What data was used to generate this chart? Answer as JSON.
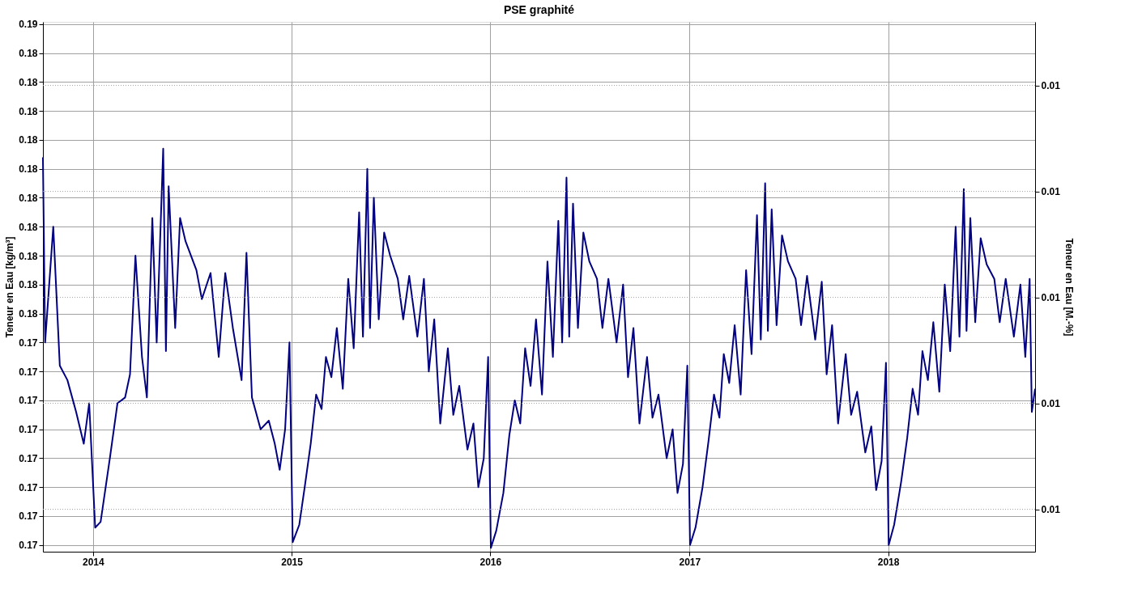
{
  "chart_data": {
    "type": "line",
    "title": "PSE graphité",
    "ylabel": "Teneur en Eau [kg/m³]",
    "y2label": "Teneur en Eau [M.-%]",
    "xlim": [
      "2013-10-01",
      "2018-09-28"
    ],
    "xticks": [
      "2014",
      "2015",
      "2016",
      "2017",
      "2018"
    ],
    "ylim": [
      0.16677,
      0.18508
    ],
    "yticks": [
      {
        "value": 0.167,
        "label": "0.17"
      },
      {
        "value": 0.168,
        "label": "0.17"
      },
      {
        "value": 0.169,
        "label": "0.17"
      },
      {
        "value": 0.17,
        "label": "0.17"
      },
      {
        "value": 0.171,
        "label": "0.17"
      },
      {
        "value": 0.172,
        "label": "0.17"
      },
      {
        "value": 0.173,
        "label": "0.17"
      },
      {
        "value": 0.174,
        "label": "0.17"
      },
      {
        "value": 0.175,
        "label": "0.18"
      },
      {
        "value": 0.176,
        "label": "0.18"
      },
      {
        "value": 0.177,
        "label": "0.18"
      },
      {
        "value": 0.178,
        "label": "0.18"
      },
      {
        "value": 0.179,
        "label": "0.18"
      },
      {
        "value": 0.18,
        "label": "0.18"
      },
      {
        "value": 0.181,
        "label": "0.18"
      },
      {
        "value": 0.182,
        "label": "0.18"
      },
      {
        "value": 0.183,
        "label": "0.18"
      },
      {
        "value": 0.184,
        "label": "0.18"
      },
      {
        "value": 0.185,
        "label": "0.19"
      }
    ],
    "y2lim": [
      0.00904,
      0.01104
    ],
    "y2ticks": [
      {
        "value": 0.0092,
        "label": "0.01"
      },
      {
        "value": 0.0096,
        "label": "0.01"
      },
      {
        "value": 0.01,
        "label": "0.01"
      },
      {
        "value": 0.0104,
        "label": "0.01"
      },
      {
        "value": 0.0108,
        "label": "0.01"
      }
    ],
    "grid": true,
    "line_style": "solid",
    "marker": "none",
    "series": [
      {
        "color": "#000080",
        "x": [
          "2013-10-01",
          "2013-10-05",
          "2013-10-20",
          "2013-11-01",
          "2013-11-15",
          "2013-12-01",
          "2013-12-15",
          "2013-12-25",
          "2014-01-05",
          "2014-01-15",
          "2014-02-01",
          "2014-02-15",
          "2014-03-01",
          "2014-03-10",
          "2014-03-20",
          "2014-04-01",
          "2014-04-10",
          "2014-04-20",
          "2014-04-28",
          "2014-05-10",
          "2014-05-15",
          "2014-05-20",
          "2014-06-01",
          "2014-06-10",
          "2014-06-20",
          "2014-07-10",
          "2014-07-20",
          "2014-08-05",
          "2014-08-20",
          "2014-09-01",
          "2014-09-15",
          "2014-10-01",
          "2014-10-10",
          "2014-10-20",
          "2014-11-05",
          "2014-11-20",
          "2014-12-01",
          "2014-12-10",
          "2014-12-20",
          "2014-12-28",
          "2015-01-03",
          "2015-01-15",
          "2015-01-25",
          "2015-02-05",
          "2015-02-15",
          "2015-02-25",
          "2015-03-05",
          "2015-03-15",
          "2015-03-25",
          "2015-04-05",
          "2015-04-15",
          "2015-04-25",
          "2015-05-05",
          "2015-05-12",
          "2015-05-20",
          "2015-05-25",
          "2015-06-01",
          "2015-06-10",
          "2015-06-20",
          "2015-07-01",
          "2015-07-15",
          "2015-07-25",
          "2015-08-05",
          "2015-08-20",
          "2015-09-01",
          "2015-09-10",
          "2015-09-20",
          "2015-10-01",
          "2015-10-15",
          "2015-10-25",
          "2015-11-05",
          "2015-11-20",
          "2015-12-01",
          "2015-12-10",
          "2015-12-20",
          "2015-12-28",
          "2016-01-02",
          "2016-01-12",
          "2016-01-25",
          "2016-02-05",
          "2016-02-15",
          "2016-02-25",
          "2016-03-05",
          "2016-03-15",
          "2016-03-25",
          "2016-04-05",
          "2016-04-15",
          "2016-04-25",
          "2016-05-05",
          "2016-05-12",
          "2016-05-20",
          "2016-05-25",
          "2016-06-01",
          "2016-06-10",
          "2016-06-20",
          "2016-07-01",
          "2016-07-15",
          "2016-07-25",
          "2016-08-05",
          "2016-08-20",
          "2016-09-01",
          "2016-09-10",
          "2016-09-20",
          "2016-10-01",
          "2016-10-15",
          "2016-10-25",
          "2016-11-05",
          "2016-11-20",
          "2016-12-01",
          "2016-12-10",
          "2016-12-20",
          "2016-12-28",
          "2017-01-02",
          "2017-01-12",
          "2017-01-25",
          "2017-02-05",
          "2017-02-15",
          "2017-02-25",
          "2017-03-05",
          "2017-03-15",
          "2017-03-25",
          "2017-04-05",
          "2017-04-15",
          "2017-04-25",
          "2017-05-05",
          "2017-05-12",
          "2017-05-20",
          "2017-05-25",
          "2017-06-01",
          "2017-06-10",
          "2017-06-20",
          "2017-07-01",
          "2017-07-15",
          "2017-07-25",
          "2017-08-05",
          "2017-08-20",
          "2017-09-01",
          "2017-09-10",
          "2017-09-20",
          "2017-10-01",
          "2017-10-15",
          "2017-10-25",
          "2017-11-05",
          "2017-11-20",
          "2017-12-01",
          "2017-12-10",
          "2017-12-20",
          "2017-12-28",
          "2018-01-02",
          "2018-01-12",
          "2018-01-25",
          "2018-02-05",
          "2018-02-15",
          "2018-02-25",
          "2018-03-05",
          "2018-03-15",
          "2018-03-25",
          "2018-04-05",
          "2018-04-15",
          "2018-04-25",
          "2018-05-05",
          "2018-05-12",
          "2018-05-20",
          "2018-05-25",
          "2018-06-01",
          "2018-06-10",
          "2018-06-20",
          "2018-07-01",
          "2018-07-15",
          "2018-07-25",
          "2018-08-05",
          "2018-08-20",
          "2018-09-01",
          "2018-09-10",
          "2018-09-18",
          "2018-09-22",
          "2018-09-28"
        ],
        "values": [
          0.1804,
          0.174,
          0.178,
          0.1732,
          0.1727,
          0.1716,
          0.1705,
          0.1719,
          0.1676,
          0.1678,
          0.17,
          0.1719,
          0.1721,
          0.1729,
          0.177,
          0.1735,
          0.1721,
          0.1783,
          0.174,
          0.1807,
          0.1737,
          0.1794,
          0.1745,
          0.1783,
          0.1775,
          0.1765,
          0.1755,
          0.1764,
          0.1735,
          0.1764,
          0.1745,
          0.1727,
          0.1771,
          0.1721,
          0.171,
          0.1713,
          0.1705,
          0.1696,
          0.171,
          0.174,
          0.1671,
          0.1677,
          0.169,
          0.1705,
          0.1722,
          0.1717,
          0.1735,
          0.1728,
          0.1745,
          0.1724,
          0.1762,
          0.1738,
          0.1785,
          0.1742,
          0.18,
          0.1745,
          0.179,
          0.1748,
          0.1778,
          0.177,
          0.1762,
          0.1748,
          0.1763,
          0.1742,
          0.1762,
          0.173,
          0.1748,
          0.1712,
          0.1738,
          0.1715,
          0.1725,
          0.1703,
          0.1712,
          0.169,
          0.17,
          0.1735,
          0.1669,
          0.1675,
          0.1688,
          0.1708,
          0.172,
          0.1712,
          0.1738,
          0.1725,
          0.1748,
          0.1722,
          0.1768,
          0.1735,
          0.1782,
          0.174,
          0.1797,
          0.1742,
          0.1788,
          0.1745,
          0.1778,
          0.1768,
          0.1762,
          0.1745,
          0.1762,
          0.174,
          0.176,
          0.1728,
          0.1745,
          0.1712,
          0.1735,
          0.1714,
          0.1722,
          0.17,
          0.171,
          0.1688,
          0.1698,
          0.1732,
          0.167,
          0.1676,
          0.169,
          0.1706,
          0.1722,
          0.1714,
          0.1736,
          0.1726,
          0.1746,
          0.1722,
          0.1765,
          0.1736,
          0.1784,
          0.1741,
          0.1795,
          0.1744,
          0.1786,
          0.1746,
          0.1777,
          0.1768,
          0.1762,
          0.1746,
          0.1763,
          0.1741,
          0.1761,
          0.1729,
          0.1746,
          0.1712,
          0.1736,
          0.1715,
          0.1723,
          0.1702,
          0.1711,
          0.1689,
          0.1699,
          0.1733,
          0.167,
          0.1677,
          0.1692,
          0.1707,
          0.1724,
          0.1715,
          0.1737,
          0.1727,
          0.1747,
          0.1723,
          0.176,
          0.1737,
          0.178,
          0.1742,
          0.1793,
          0.1744,
          0.1783,
          0.1747,
          0.1776,
          0.1767,
          0.1762,
          0.1747,
          0.1762,
          0.1742,
          0.176,
          0.1735,
          0.1762,
          0.1716,
          0.1724
        ]
      }
    ]
  }
}
